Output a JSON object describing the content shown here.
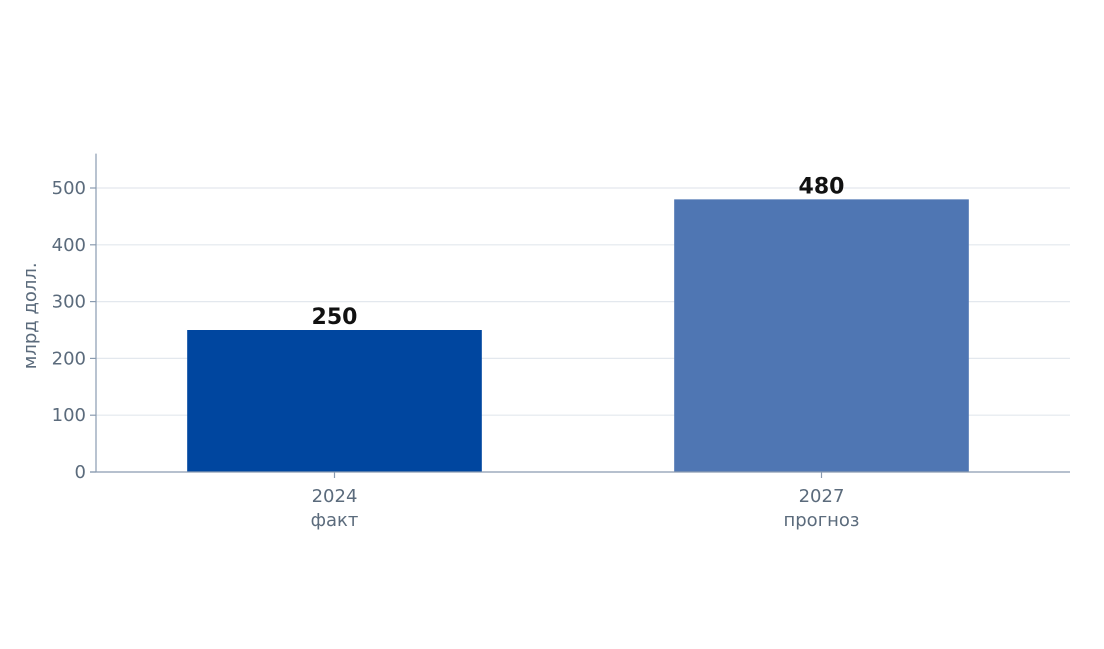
{
  "chart_data": {
    "type": "bar",
    "title": "",
    "xlabel": "",
    "ylabel": "млрд долл.",
    "ylim": [
      0,
      550
    ],
    "yticks": [
      0,
      100,
      200,
      300,
      400,
      500
    ],
    "grid": true,
    "categories": [
      {
        "year": "2024",
        "note": "факт"
      },
      {
        "year": "2027",
        "note": "прогноз"
      }
    ],
    "values": [
      250,
      480
    ],
    "data_labels": [
      "250",
      "480"
    ],
    "colors": [
      "#00469f",
      "#4f76b3"
    ]
  }
}
